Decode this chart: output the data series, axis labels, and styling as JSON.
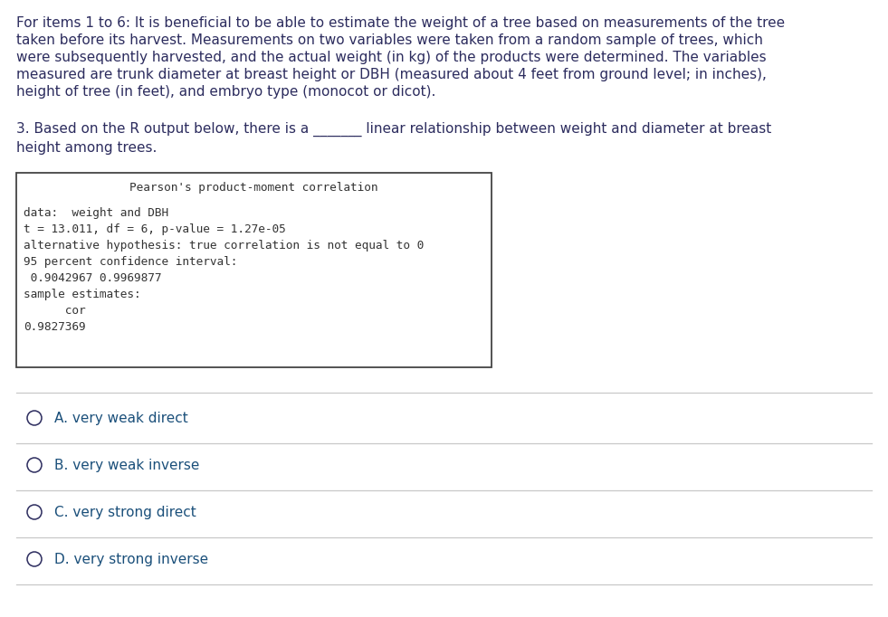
{
  "background_color": "#ffffff",
  "intro_lines": [
    "For items 1 to 6: It is beneficial to be able to estimate the weight of a tree based on measurements of the tree",
    "taken before its harvest. Measurements on two variables were taken from a random sample of trees, which",
    "were subsequently harvested, and the actual weight (in kg) of the products were determined. The variables",
    "measured are trunk diameter at breast height or DBH (measured about 4 feet from ground level; in inches),",
    "height of tree (in feet), and embryo type (monocot or dicot)."
  ],
  "question_line1": "3. Based on the R output below, there is a _______ linear relationship between weight and diameter at breast",
  "question_line2": "height among trees.",
  "r_output_title": "Pearson's product-moment correlation",
  "r_output_lines": [
    "data:  weight and DBH",
    "t = 13.011, df = 6, p-value = 1.27e-05",
    "alternative hypothesis: true correlation is not equal to 0",
    "95 percent confidence interval:",
    " 0.9042967 0.9969877",
    "sample estimates:",
    "      cor",
    "0.9827369"
  ],
  "choices": [
    "A. very weak direct",
    "B. very weak inverse",
    "C. very strong direct",
    "D. very strong inverse"
  ],
  "text_color": "#2c2c5e",
  "choice_color": "#1a4f7a",
  "separator_color": "#c8c8c8",
  "mono_color": "#555555",
  "box_edge_color": "#444444",
  "intro_fontsize": 11.0,
  "question_fontsize": 11.0,
  "mono_fontsize": 9.2,
  "choice_fontsize": 11.0
}
